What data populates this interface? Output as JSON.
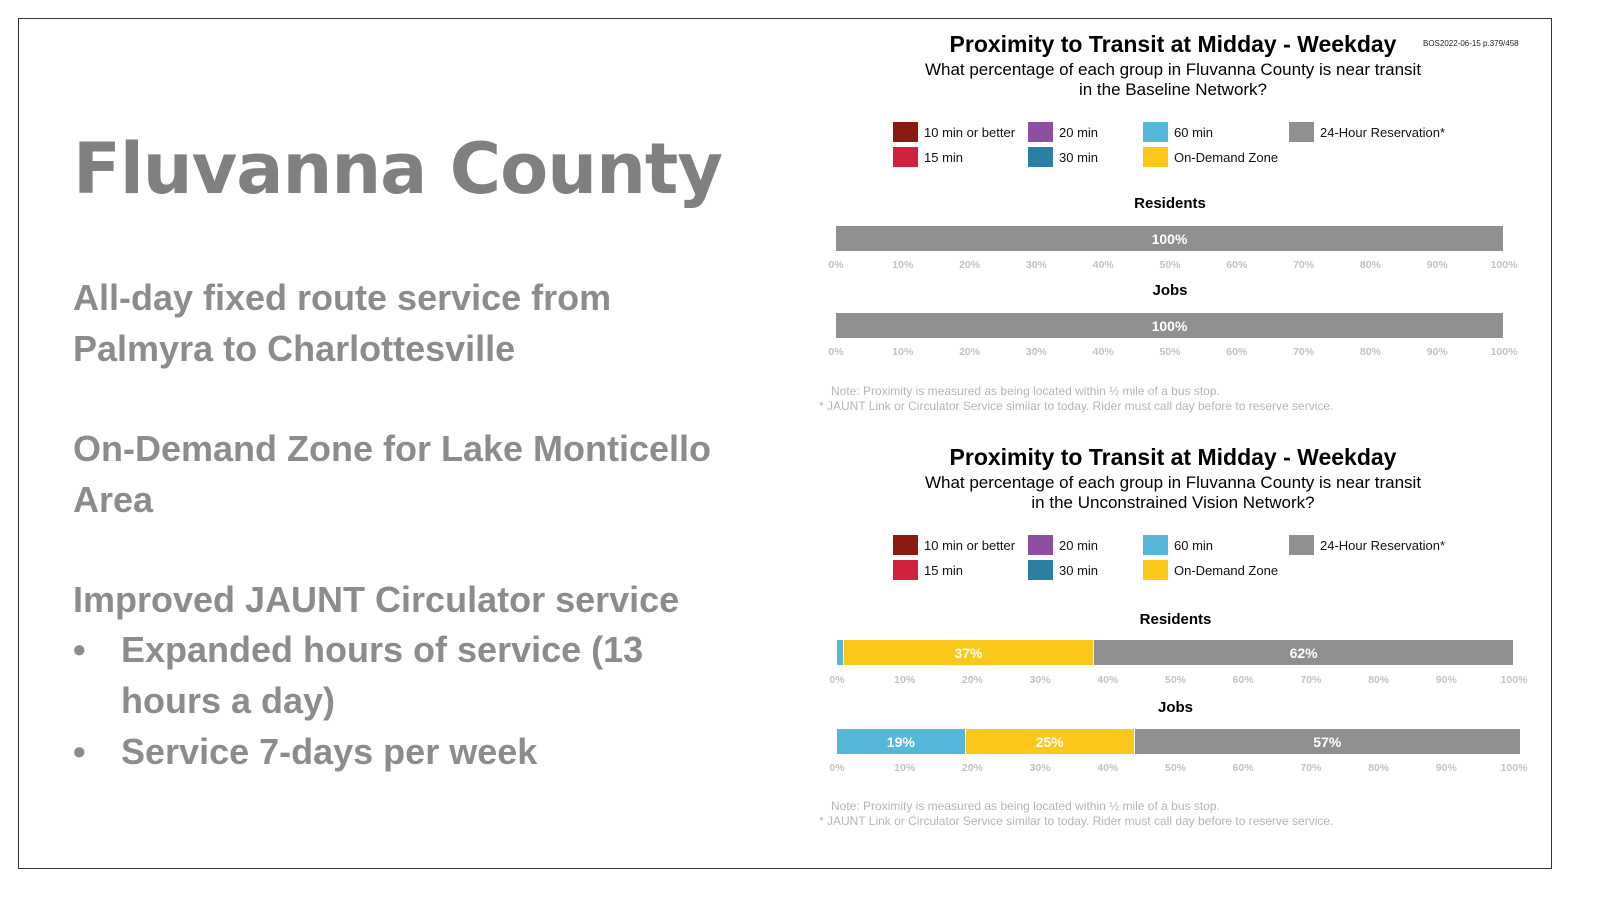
{
  "page_ref": "BOS2022-06-15 p.379/458",
  "slide": {
    "title": "Fluvanna County",
    "para1": "All-day fixed route service from Palmyra to Charlottesville",
    "para2": "On-Demand Zone for Lake Monticello Area",
    "para3": "Improved JAUNT Circulator service",
    "bullet_char": "•",
    "bullets": [
      "Expanded hours of service (13 hours a day)",
      "Service 7-days per week"
    ]
  },
  "legend": [
    {
      "label": "10 min or better",
      "color": "#8b1a10"
    },
    {
      "label": "15 min",
      "color": "#d0223a"
    },
    {
      "label": "20 min",
      "color": "#8e4fa3"
    },
    {
      "label": "30 min",
      "color": "#2a7fa3"
    },
    {
      "label": "60 min",
      "color": "#56b8d8"
    },
    {
      "label": "On-Demand Zone",
      "color": "#fbc71b"
    },
    {
      "label": "24-Hour Reservation*",
      "color": "#8e9090"
    }
  ],
  "chart_data": [
    {
      "type": "bar",
      "orientation": "horizontal-stacked",
      "title": "Proximity to Transit at Midday - Weekday",
      "subtitle_line1": "What percentage of each group in Fluvanna County is near transit",
      "subtitle_line2": "in the Baseline Network?",
      "categories": [
        "Residents",
        "Jobs"
      ],
      "xlim": [
        0,
        100
      ],
      "x_ticks": [
        "0%",
        "10%",
        "20%",
        "30%",
        "40%",
        "50%",
        "60%",
        "70%",
        "80%",
        "90%",
        "100%"
      ],
      "series": [
        {
          "name": "60 min",
          "values": [
            0,
            0
          ],
          "labels": [
            "",
            ""
          ]
        },
        {
          "name": "On-Demand Zone",
          "values": [
            0,
            0
          ],
          "labels": [
            "",
            ""
          ]
        },
        {
          "name": "24-Hour Reservation*",
          "values": [
            100,
            100
          ],
          "labels": [
            "100%",
            "100%"
          ]
        }
      ],
      "note1": "Note: Proximity is measured as being located within ½ mile of a bus stop.",
      "note2": "* JAUNT Link or Circulator Service similar to today. Rider must call day before to reserve service."
    },
    {
      "type": "bar",
      "orientation": "horizontal-stacked",
      "title": "Proximity to Transit at Midday - Weekday",
      "subtitle_line1": "What percentage of each group in Fluvanna County is near transit",
      "subtitle_line2": "in the Unconstrained Vision Network?",
      "categories": [
        "Residents",
        "Jobs"
      ],
      "xlim": [
        0,
        100
      ],
      "x_ticks": [
        "0%",
        "10%",
        "20%",
        "30%",
        "40%",
        "50%",
        "60%",
        "70%",
        "80%",
        "90%",
        "100%"
      ],
      "series": [
        {
          "name": "60 min",
          "values": [
            1,
            19
          ],
          "labels": [
            "",
            "19%"
          ]
        },
        {
          "name": "On-Demand Zone",
          "values": [
            37,
            25
          ],
          "labels": [
            "37%",
            "25%"
          ]
        },
        {
          "name": "24-Hour Reservation*",
          "values": [
            62,
            57
          ],
          "labels": [
            "62%",
            "57%"
          ]
        }
      ],
      "note1": "Note: Proximity is measured as being located within ½ mile of a bus stop.",
      "note2": "* JAUNT Link or Circulator Service similar to today. Rider must call day before to reserve service."
    }
  ]
}
